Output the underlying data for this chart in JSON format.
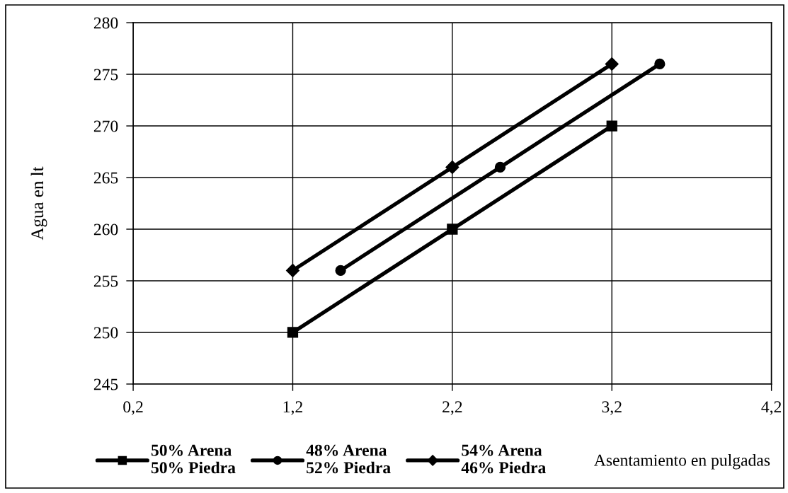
{
  "chart_data": {
    "type": "line",
    "xlabel": "Asentamiento en pulgadas",
    "ylabel": "Agua en lt",
    "series": [
      {
        "name": "50% Arena\n50% Piedra",
        "color": "#000000",
        "marker": "square",
        "x": [
          1.2,
          2.2,
          3.2
        ],
        "values": [
          250,
          260,
          270
        ]
      },
      {
        "name": "48% Arena\n52% Piedra",
        "color": "#000000",
        "marker": "circle",
        "x": [
          1.5,
          2.5,
          3.5
        ],
        "values": [
          256,
          266,
          276
        ]
      },
      {
        "name": "54% Arena\n46% Piedra",
        "color": "#000000",
        "marker": "diamond",
        "x": [
          1.2,
          2.2,
          3.2
        ],
        "values": [
          256,
          266,
          276
        ]
      }
    ],
    "xlim": [
      0.2,
      4.2
    ],
    "xticks": [
      {
        "value": 0.2,
        "label": "0,2"
      },
      {
        "value": 1.2,
        "label": "1,2"
      },
      {
        "value": 2.2,
        "label": "2,2"
      },
      {
        "value": 3.2,
        "label": "3,2"
      },
      {
        "value": 4.2,
        "label": "4,2"
      }
    ],
    "ylim": [
      245,
      280
    ],
    "yticks": [
      245,
      250,
      255,
      260,
      265,
      270,
      275,
      280
    ],
    "grid": true,
    "legend": "bottom",
    "line_style": "solid"
  }
}
